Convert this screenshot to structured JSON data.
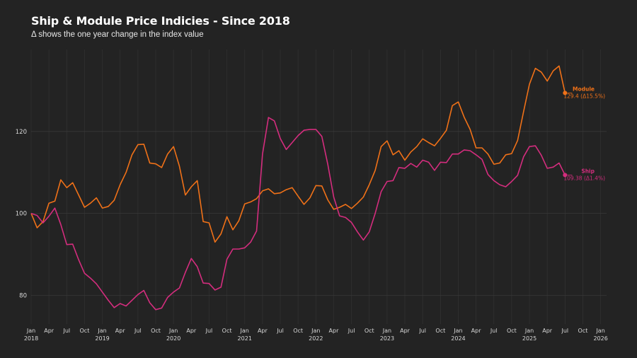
{
  "header": {
    "title": "Ship & Module Price Indicies - Since 2018",
    "subtitle": "Δ shows the one year change in the index value"
  },
  "chart_data": {
    "type": "line",
    "title": "Ship & Module Price Indicies - Since 2018",
    "subtitle": "Δ shows the one year change in the index value",
    "x_start": "2018-01",
    "x_end": "2026-01",
    "xlim": [
      "2018-01",
      "2026-02"
    ],
    "ylim": [
      73,
      140
    ],
    "yticks": [
      80,
      100,
      120
    ],
    "grid": true,
    "x_ticks": [
      {
        "month": "Jan",
        "year": "2018"
      },
      {
        "month": "Apr",
        "year": ""
      },
      {
        "month": "Jul",
        "year": ""
      },
      {
        "month": "Oct",
        "year": ""
      },
      {
        "month": "Jan",
        "year": "2019"
      },
      {
        "month": "Apr",
        "year": ""
      },
      {
        "month": "Jul",
        "year": ""
      },
      {
        "month": "Oct",
        "year": ""
      },
      {
        "month": "Jan",
        "year": "2020"
      },
      {
        "month": "Apr",
        "year": ""
      },
      {
        "month": "Jul",
        "year": ""
      },
      {
        "month": "Oct",
        "year": ""
      },
      {
        "month": "Jan",
        "year": "2021"
      },
      {
        "month": "Apr",
        "year": ""
      },
      {
        "month": "Jul",
        "year": ""
      },
      {
        "month": "Oct",
        "year": ""
      },
      {
        "month": "Jan",
        "year": "2022"
      },
      {
        "month": "Apr",
        "year": ""
      },
      {
        "month": "Jul",
        "year": ""
      },
      {
        "month": "Oct",
        "year": ""
      },
      {
        "month": "Jan",
        "year": "2023"
      },
      {
        "month": "Apr",
        "year": ""
      },
      {
        "month": "Jul",
        "year": ""
      },
      {
        "month": "Oct",
        "year": ""
      },
      {
        "month": "Jan",
        "year": "2024"
      },
      {
        "month": "Apr",
        "year": ""
      },
      {
        "month": "Jul",
        "year": ""
      },
      {
        "month": "Oct",
        "year": ""
      },
      {
        "month": "Jan",
        "year": "2025"
      },
      {
        "month": "Apr",
        "year": ""
      },
      {
        "month": "Jul",
        "year": ""
      },
      {
        "month": "Oct",
        "year": ""
      },
      {
        "month": "Jan",
        "year": "2026"
      }
    ],
    "series": [
      {
        "name": "Module",
        "color": "#f07118",
        "end_label": "129.4 (Δ15.5%)",
        "values": [
          100,
          96.5,
          98,
          102.5,
          103,
          108.2,
          106.3,
          107.5,
          104.5,
          101.5,
          102.5,
          103.8,
          101.3,
          101.7,
          103.2,
          107,
          110,
          114.3,
          116.8,
          116.9,
          112.3,
          112.1,
          111.2,
          114.5,
          116.3,
          111.5,
          104.5,
          106.5,
          108,
          98,
          97.7,
          93,
          95,
          99.2,
          96,
          98.2,
          102.3,
          102.8,
          103.6,
          105.5,
          106,
          104.8,
          105,
          105.8,
          106.3,
          104.2,
          102.2,
          103.8,
          106.8,
          106.7,
          103.3,
          101,
          101.5,
          102.2,
          101.2,
          102.5,
          104,
          107,
          110.5,
          116.3,
          117.7,
          114.3,
          115.3,
          113,
          115,
          116.3,
          118.2,
          117.3,
          116.5,
          118.3,
          120.3,
          126.3,
          127.2,
          123.5,
          120.5,
          116,
          116,
          114.5,
          112,
          112.3,
          114.3,
          114.6,
          117.8,
          124.8,
          131.5,
          135.4,
          134.5,
          132.3,
          134.8,
          136,
          129.4
        ]
      },
      {
        "name": "Ship",
        "color": "#d42d7e",
        "end_label": "109.38 (Δ1.4%)",
        "values": [
          100,
          99.5,
          97.7,
          99.3,
          101.3,
          97.3,
          92.4,
          92.5,
          88.7,
          85.4,
          84.2,
          82.8,
          80.8,
          78.8,
          77,
          78,
          77.4,
          78.8,
          80.2,
          81.2,
          78.2,
          76.5,
          76.9,
          79.5,
          80.8,
          81.8,
          85.6,
          89,
          87,
          83,
          82.9,
          81.3,
          82,
          88.8,
          91.3,
          91.3,
          91.6,
          93,
          95.7,
          114.5,
          123.4,
          122.6,
          118.3,
          115.6,
          117.3,
          119,
          120.3,
          120.5,
          120.5,
          118.8,
          112,
          104,
          99.4,
          99,
          97.8,
          95.5,
          93.5,
          95.5,
          100,
          105.3,
          107.8,
          108,
          111.2,
          111,
          112.2,
          111.3,
          113,
          112.5,
          110.5,
          112.5,
          112.4,
          114.5,
          114.5,
          115.5,
          115.3,
          114.3,
          113.2,
          109.5,
          108,
          107,
          106.5,
          107.8,
          109.3,
          113.8,
          116.3,
          116.5,
          114.2,
          111,
          111.3,
          112.3,
          109.38
        ]
      }
    ]
  }
}
